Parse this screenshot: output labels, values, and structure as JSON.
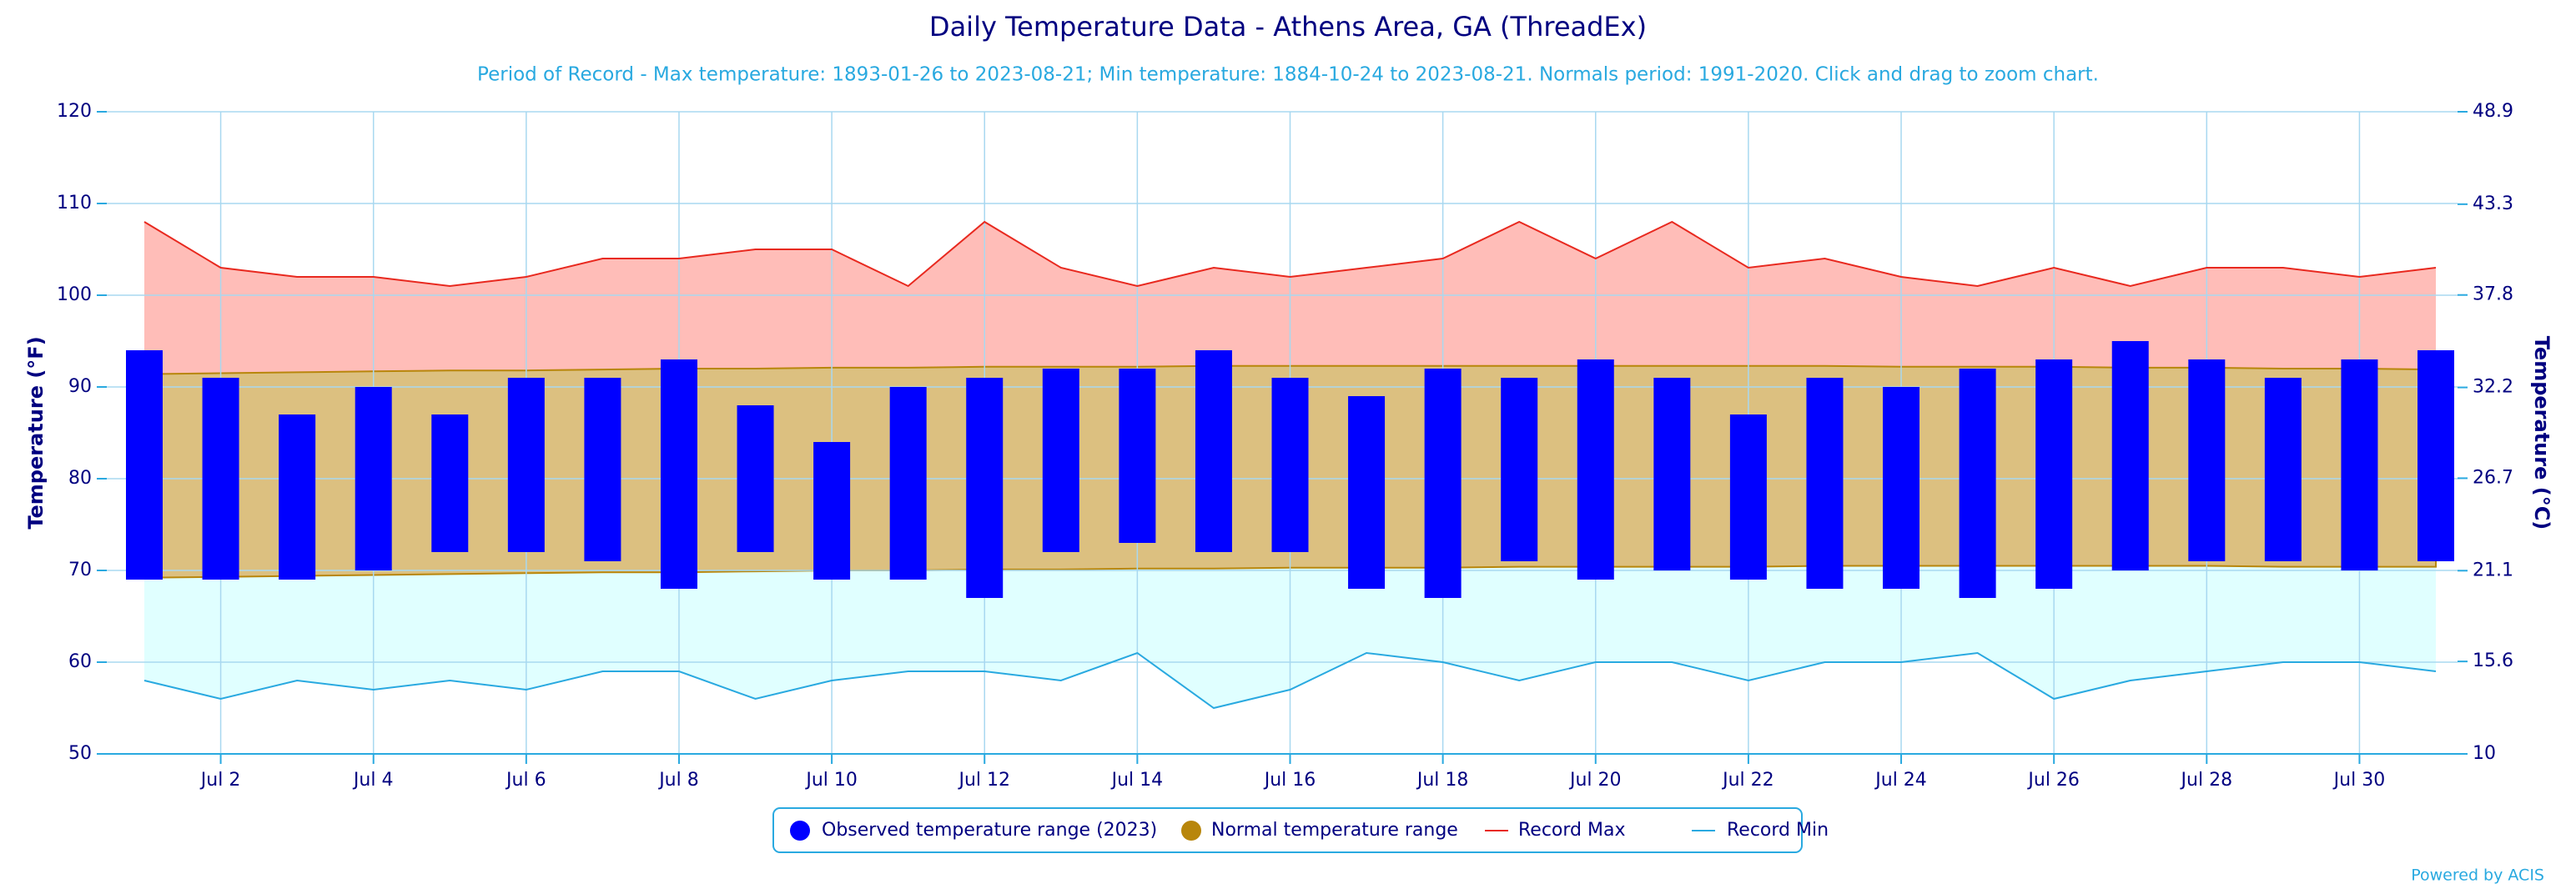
{
  "chart_data": {
    "type": "range",
    "title": "Daily Temperature Data - Athens Area, GA (ThreadEx)",
    "subtitle": "Period of Record - Max temperature: 1893-01-26 to 2023-08-21; Min temperature: 1884-10-24 to 2023-08-21. Normals period: 1991-2020. Click and drag to zoom chart.",
    "y_label": "Temperature (°F)",
    "y2_label": "Temperature (°C)",
    "credit": "Powered by ACIS",
    "categories": [
      null,
      "Jul 2",
      null,
      "Jul 4",
      null,
      "Jul 6",
      null,
      "Jul 8",
      null,
      "Jul 10",
      null,
      "Jul 12",
      null,
      "Jul 14",
      null,
      "Jul 16",
      null,
      "Jul 18",
      null,
      "Jul 20",
      null,
      "Jul 22",
      null,
      "Jul 24",
      null,
      "Jul 26",
      null,
      "Jul 28",
      null,
      "Jul 30",
      null
    ],
    "ylim": [
      50,
      120
    ],
    "yticks": [
      50,
      60,
      70,
      80,
      90,
      100,
      110,
      120
    ],
    "y2lim": [
      10,
      48.9
    ],
    "y2ticks": [
      10,
      15.6,
      21.1,
      26.7,
      32.2,
      37.8,
      43.3,
      48.9
    ],
    "grid": true,
    "series": [
      {
        "name": "Observed temperature range (2023)",
        "color": "#0000ff",
        "high": [
          94,
          91,
          87,
          90,
          87,
          91,
          91,
          93,
          88,
          84,
          90,
          91,
          92,
          92,
          94,
          91,
          89,
          92,
          91,
          93,
          91,
          87,
          91,
          90,
          92,
          93,
          95,
          93,
          91,
          93,
          94
        ],
        "low": [
          69,
          69,
          69,
          70,
          72,
          72,
          71,
          68,
          72,
          69,
          69,
          67,
          72,
          73,
          72,
          72,
          68,
          67,
          71,
          69,
          70,
          69,
          68,
          68,
          67,
          68,
          70,
          71,
          71,
          70,
          71
        ]
      },
      {
        "name": "Normal temperature range",
        "color": "#b8860b",
        "high": [
          91.4,
          91.5,
          91.6,
          91.7,
          91.8,
          91.8,
          91.9,
          92.0,
          92.0,
          92.1,
          92.1,
          92.2,
          92.2,
          92.2,
          92.3,
          92.3,
          92.3,
          92.3,
          92.3,
          92.3,
          92.3,
          92.3,
          92.3,
          92.2,
          92.2,
          92.2,
          92.1,
          92.1,
          92.0,
          92.0,
          91.9
        ],
        "low": [
          69.2,
          69.3,
          69.4,
          69.5,
          69.6,
          69.7,
          69.8,
          69.8,
          69.9,
          70.0,
          70.0,
          70.1,
          70.1,
          70.2,
          70.2,
          70.3,
          70.3,
          70.3,
          70.4,
          70.4,
          70.4,
          70.4,
          70.5,
          70.5,
          70.5,
          70.5,
          70.5,
          70.5,
          70.4,
          70.4,
          70.4
        ]
      },
      {
        "name": "Record Max",
        "color": "#e8291f",
        "values": [
          108,
          103,
          102,
          102,
          101,
          102,
          104,
          104,
          105,
          105,
          101,
          108,
          103,
          101,
          103,
          102,
          103,
          104,
          108,
          104,
          108,
          103,
          104,
          102,
          101,
          103,
          101,
          103,
          103,
          102,
          103
        ]
      },
      {
        "name": "Record Min",
        "color": "#29a9e0",
        "values": [
          58,
          56,
          58,
          57,
          58,
          57,
          59,
          59,
          56,
          58,
          59,
          59,
          58,
          61,
          55,
          57,
          61,
          60,
          58,
          60,
          60,
          58,
          60,
          60,
          61,
          56,
          58,
          59,
          60,
          60,
          59
        ]
      }
    ]
  }
}
